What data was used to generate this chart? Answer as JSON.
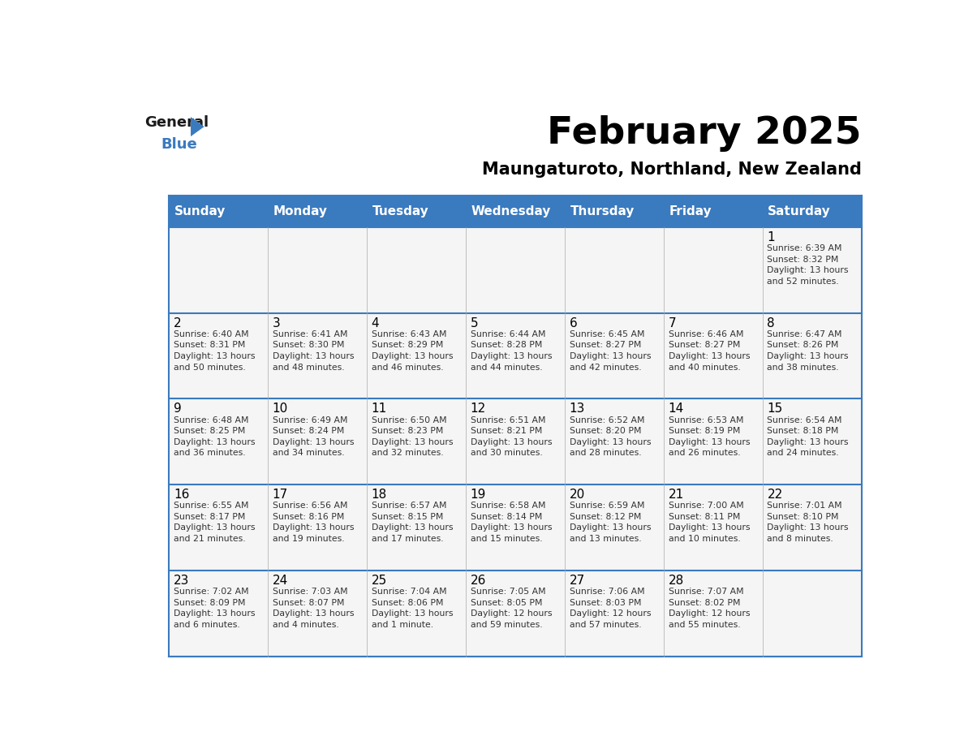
{
  "title": "February 2025",
  "subtitle": "Maungaturoto, Northland, New Zealand",
  "header_bg": "#3a7abf",
  "header_text": "#ffffff",
  "cell_bg": "#f5f5f5",
  "border_color": "#3a7abf",
  "text_color": "#333333",
  "day_headers": [
    "Sunday",
    "Monday",
    "Tuesday",
    "Wednesday",
    "Thursday",
    "Friday",
    "Saturday"
  ],
  "weeks": [
    [
      {
        "day": "",
        "info": ""
      },
      {
        "day": "",
        "info": ""
      },
      {
        "day": "",
        "info": ""
      },
      {
        "day": "",
        "info": ""
      },
      {
        "day": "",
        "info": ""
      },
      {
        "day": "",
        "info": ""
      },
      {
        "day": "1",
        "info": "Sunrise: 6:39 AM\nSunset: 8:32 PM\nDaylight: 13 hours\nand 52 minutes."
      }
    ],
    [
      {
        "day": "2",
        "info": "Sunrise: 6:40 AM\nSunset: 8:31 PM\nDaylight: 13 hours\nand 50 minutes."
      },
      {
        "day": "3",
        "info": "Sunrise: 6:41 AM\nSunset: 8:30 PM\nDaylight: 13 hours\nand 48 minutes."
      },
      {
        "day": "4",
        "info": "Sunrise: 6:43 AM\nSunset: 8:29 PM\nDaylight: 13 hours\nand 46 minutes."
      },
      {
        "day": "5",
        "info": "Sunrise: 6:44 AM\nSunset: 8:28 PM\nDaylight: 13 hours\nand 44 minutes."
      },
      {
        "day": "6",
        "info": "Sunrise: 6:45 AM\nSunset: 8:27 PM\nDaylight: 13 hours\nand 42 minutes."
      },
      {
        "day": "7",
        "info": "Sunrise: 6:46 AM\nSunset: 8:27 PM\nDaylight: 13 hours\nand 40 minutes."
      },
      {
        "day": "8",
        "info": "Sunrise: 6:47 AM\nSunset: 8:26 PM\nDaylight: 13 hours\nand 38 minutes."
      }
    ],
    [
      {
        "day": "9",
        "info": "Sunrise: 6:48 AM\nSunset: 8:25 PM\nDaylight: 13 hours\nand 36 minutes."
      },
      {
        "day": "10",
        "info": "Sunrise: 6:49 AM\nSunset: 8:24 PM\nDaylight: 13 hours\nand 34 minutes."
      },
      {
        "day": "11",
        "info": "Sunrise: 6:50 AM\nSunset: 8:23 PM\nDaylight: 13 hours\nand 32 minutes."
      },
      {
        "day": "12",
        "info": "Sunrise: 6:51 AM\nSunset: 8:21 PM\nDaylight: 13 hours\nand 30 minutes."
      },
      {
        "day": "13",
        "info": "Sunrise: 6:52 AM\nSunset: 8:20 PM\nDaylight: 13 hours\nand 28 minutes."
      },
      {
        "day": "14",
        "info": "Sunrise: 6:53 AM\nSunset: 8:19 PM\nDaylight: 13 hours\nand 26 minutes."
      },
      {
        "day": "15",
        "info": "Sunrise: 6:54 AM\nSunset: 8:18 PM\nDaylight: 13 hours\nand 24 minutes."
      }
    ],
    [
      {
        "day": "16",
        "info": "Sunrise: 6:55 AM\nSunset: 8:17 PM\nDaylight: 13 hours\nand 21 minutes."
      },
      {
        "day": "17",
        "info": "Sunrise: 6:56 AM\nSunset: 8:16 PM\nDaylight: 13 hours\nand 19 minutes."
      },
      {
        "day": "18",
        "info": "Sunrise: 6:57 AM\nSunset: 8:15 PM\nDaylight: 13 hours\nand 17 minutes."
      },
      {
        "day": "19",
        "info": "Sunrise: 6:58 AM\nSunset: 8:14 PM\nDaylight: 13 hours\nand 15 minutes."
      },
      {
        "day": "20",
        "info": "Sunrise: 6:59 AM\nSunset: 8:12 PM\nDaylight: 13 hours\nand 13 minutes."
      },
      {
        "day": "21",
        "info": "Sunrise: 7:00 AM\nSunset: 8:11 PM\nDaylight: 13 hours\nand 10 minutes."
      },
      {
        "day": "22",
        "info": "Sunrise: 7:01 AM\nSunset: 8:10 PM\nDaylight: 13 hours\nand 8 minutes."
      }
    ],
    [
      {
        "day": "23",
        "info": "Sunrise: 7:02 AM\nSunset: 8:09 PM\nDaylight: 13 hours\nand 6 minutes."
      },
      {
        "day": "24",
        "info": "Sunrise: 7:03 AM\nSunset: 8:07 PM\nDaylight: 13 hours\nand 4 minutes."
      },
      {
        "day": "25",
        "info": "Sunrise: 7:04 AM\nSunset: 8:06 PM\nDaylight: 13 hours\nand 1 minute."
      },
      {
        "day": "26",
        "info": "Sunrise: 7:05 AM\nSunset: 8:05 PM\nDaylight: 12 hours\nand 59 minutes."
      },
      {
        "day": "27",
        "info": "Sunrise: 7:06 AM\nSunset: 8:03 PM\nDaylight: 12 hours\nand 57 minutes."
      },
      {
        "day": "28",
        "info": "Sunrise: 7:07 AM\nSunset: 8:02 PM\nDaylight: 12 hours\nand 55 minutes."
      },
      {
        "day": "",
        "info": ""
      }
    ]
  ],
  "logo_general_color": "#1a1a1a",
  "logo_blue_color": "#3a7abf",
  "logo_triangle_color": "#3a7abf"
}
